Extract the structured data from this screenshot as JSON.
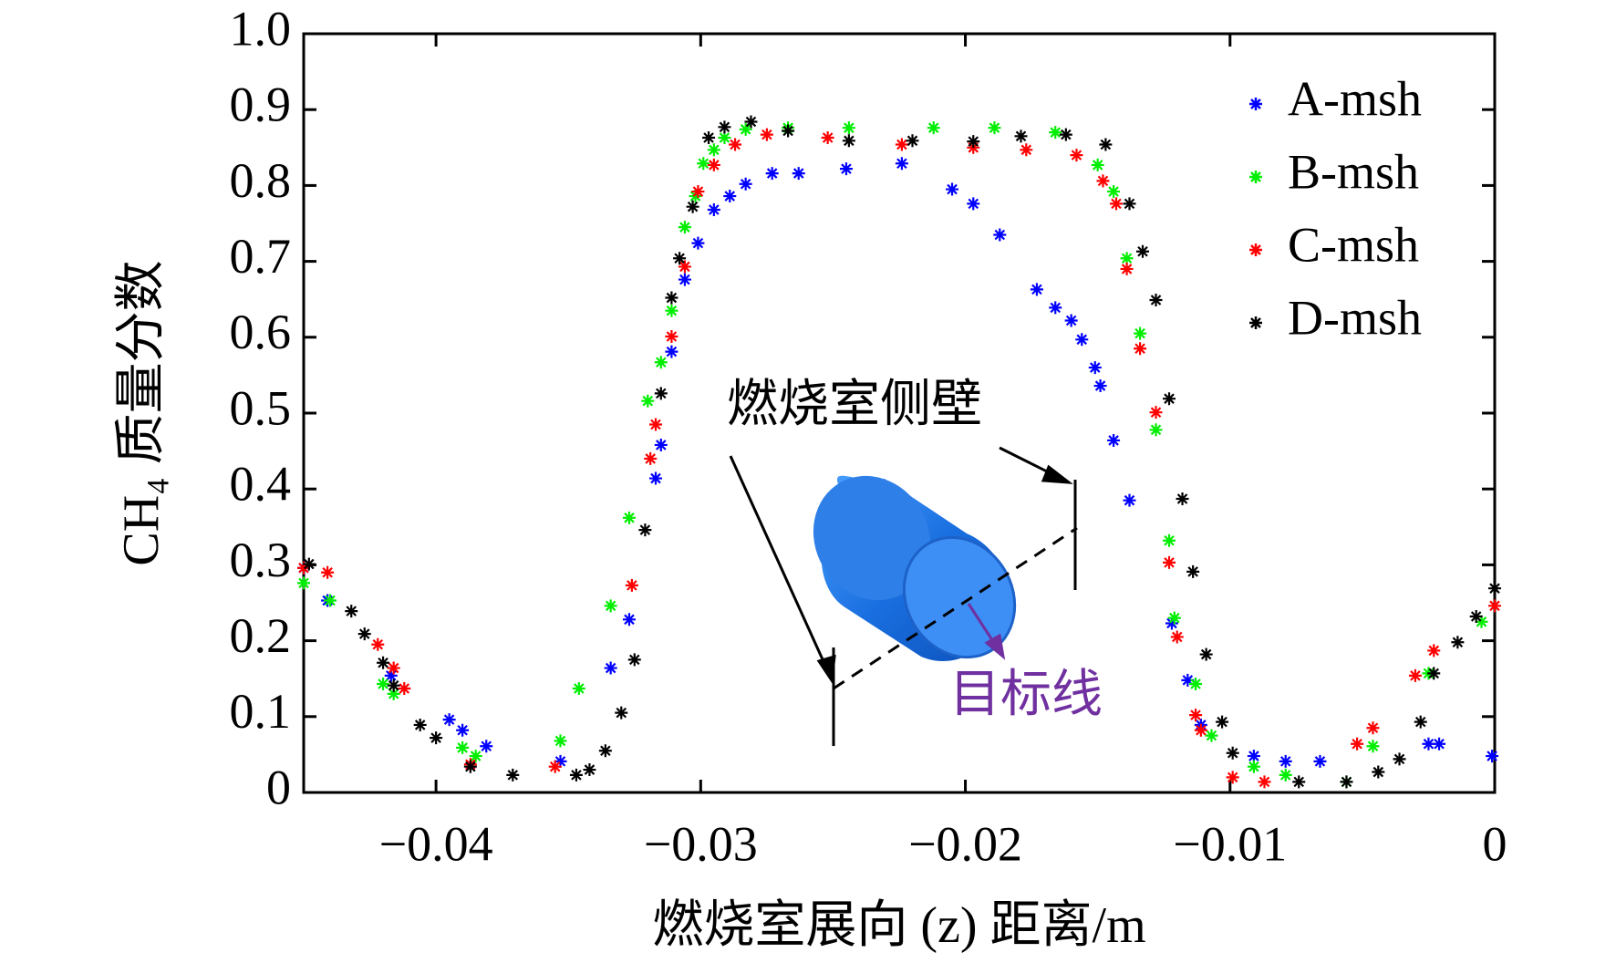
{
  "chart_data": {
    "type": "scatter",
    "xlabel": "燃烧室展向 (z) 距离/m",
    "ylabel": "CH₄ 质量分数",
    "annotations": [
      "燃烧室侧壁",
      "目标线"
    ],
    "xlim": [
      -0.045,
      0
    ],
    "ylim": [
      0,
      1
    ],
    "xticks": [
      {
        "value": -0.04,
        "label": "−0.04"
      },
      {
        "value": -0.03,
        "label": "−0.03"
      },
      {
        "value": -0.02,
        "label": "−0.02"
      },
      {
        "value": -0.01,
        "label": "−0.01"
      },
      0
    ],
    "yticks": [
      0,
      0.1,
      0.2,
      0.3,
      0.4,
      0.5,
      0.6,
      0.7,
      0.8,
      0.9,
      {
        "value": 1,
        "label": "1.0"
      }
    ],
    "legend": "upper right",
    "series": [
      {
        "name": "A-msh",
        "color": "#0000ff",
        "x": [
          -0.045,
          -0.0441,
          -0.0417,
          -0.0395,
          -0.039,
          -0.0381,
          -0.0353,
          -0.0334,
          -0.0327,
          -0.0317,
          -0.0315,
          -0.0311,
          -0.0306,
          -0.0301,
          -0.0295,
          -0.0289,
          -0.0283,
          -0.0273,
          -0.0263,
          -0.0245,
          -0.0224,
          -0.0205,
          -0.0197,
          -0.0187,
          -0.0173,
          -0.0166,
          -0.016,
          -0.0156,
          -0.0151,
          -0.0149,
          -0.0144,
          -0.0138,
          -0.0122,
          -0.0116,
          -0.0111,
          -0.0091,
          -0.0079,
          -0.0066,
          -0.0025,
          -0.0021,
          -0.0001
        ],
        "values": [
          0.296,
          0.253,
          0.154,
          0.096,
          0.082,
          0.061,
          0.041,
          0.164,
          0.228,
          0.414,
          0.458,
          0.581,
          0.676,
          0.724,
          0.768,
          0.786,
          0.802,
          0.816,
          0.816,
          0.822,
          0.829,
          0.795,
          0.776,
          0.735,
          0.663,
          0.639,
          0.622,
          0.597,
          0.56,
          0.536,
          0.464,
          0.385,
          0.223,
          0.148,
          0.089,
          0.048,
          0.041,
          0.041,
          0.064,
          0.064,
          0.048
        ]
      },
      {
        "name": "B-msh",
        "color": "#00ee00",
        "x": [
          -0.045,
          -0.044,
          -0.042,
          -0.0416,
          -0.039,
          -0.0385,
          -0.0353,
          -0.0346,
          -0.0334,
          -0.0327,
          -0.032,
          -0.0315,
          -0.0311,
          -0.0306,
          -0.0302,
          -0.0299,
          -0.0295,
          -0.0291,
          -0.0283,
          -0.0267,
          -0.0244,
          -0.0212,
          -0.0189,
          -0.0166,
          -0.015,
          -0.0144,
          -0.0139,
          -0.0134,
          -0.0128,
          -0.0123,
          -0.0121,
          -0.0113,
          -0.0107,
          -0.0091,
          -0.0079,
          -0.0056,
          -0.0046,
          -0.0025,
          -0.0005
        ],
        "values": [
          0.276,
          0.253,
          0.143,
          0.13,
          0.059,
          0.048,
          0.068,
          0.137,
          0.246,
          0.362,
          0.516,
          0.567,
          0.635,
          0.745,
          0.786,
          0.829,
          0.847,
          0.863,
          0.874,
          0.876,
          0.876,
          0.876,
          0.876,
          0.87,
          0.827,
          0.792,
          0.704,
          0.605,
          0.478,
          0.332,
          0.23,
          0.143,
          0.075,
          0.034,
          0.023,
          0.014,
          0.061,
          0.157,
          0.225
        ]
      },
      {
        "name": "C-msh",
        "color": "#ff0000",
        "x": [
          -0.045,
          -0.0441,
          -0.0422,
          -0.0416,
          -0.0412,
          -0.0387,
          -0.0355,
          -0.0326,
          -0.0319,
          -0.0317,
          -0.0311,
          -0.0306,
          -0.0301,
          -0.0295,
          -0.0287,
          -0.0275,
          -0.0252,
          -0.0224,
          -0.0197,
          -0.0177,
          -0.0158,
          -0.0148,
          -0.0143,
          -0.0139,
          -0.0134,
          -0.0128,
          -0.0123,
          -0.012,
          -0.0113,
          -0.0111,
          -0.0099,
          -0.0087,
          -0.0052,
          -0.0046,
          -0.003,
          -0.0023,
          0
        ],
        "values": [
          0.296,
          0.29,
          0.195,
          0.164,
          0.137,
          0.037,
          0.034,
          0.273,
          0.44,
          0.485,
          0.601,
          0.693,
          0.792,
          0.827,
          0.854,
          0.867,
          0.863,
          0.854,
          0.85,
          0.847,
          0.84,
          0.806,
          0.776,
          0.69,
          0.585,
          0.501,
          0.303,
          0.205,
          0.102,
          0.082,
          0.02,
          0.014,
          0.064,
          0.085,
          0.154,
          0.187,
          0.246
        ]
      },
      {
        "name": "D-msh",
        "color": "#000000",
        "x": [
          -0.0448,
          -0.0432,
          -0.0427,
          -0.042,
          -0.0416,
          -0.0406,
          -0.04,
          -0.0387,
          -0.0371,
          -0.0347,
          -0.0342,
          -0.0336,
          -0.033,
          -0.0325,
          -0.0321,
          -0.0315,
          -0.0311,
          -0.0308,
          -0.0303,
          -0.0297,
          -0.0291,
          -0.0281,
          -0.0267,
          -0.0244,
          -0.022,
          -0.0197,
          -0.0179,
          -0.0162,
          -0.0147,
          -0.0138,
          -0.0133,
          -0.0128,
          -0.0123,
          -0.0118,
          -0.0114,
          -0.0109,
          -0.0103,
          -0.0099,
          -0.0074,
          -0.0056,
          -0.0044,
          -0.0036,
          -0.0028,
          -0.0023,
          -0.0014,
          -0.0007,
          0
        ],
        "values": [
          0.301,
          0.239,
          0.209,
          0.171,
          0.141,
          0.089,
          0.072,
          0.034,
          0.023,
          0.023,
          0.03,
          0.055,
          0.105,
          0.175,
          0.346,
          0.526,
          0.652,
          0.704,
          0.772,
          0.863,
          0.877,
          0.884,
          0.872,
          0.859,
          0.859,
          0.858,
          0.865,
          0.867,
          0.854,
          0.776,
          0.713,
          0.649,
          0.519,
          0.387,
          0.291,
          0.182,
          0.093,
          0.052,
          0.014,
          0.014,
          0.027,
          0.044,
          0.093,
          0.157,
          0.198,
          0.232,
          0.269
        ]
      }
    ]
  }
}
